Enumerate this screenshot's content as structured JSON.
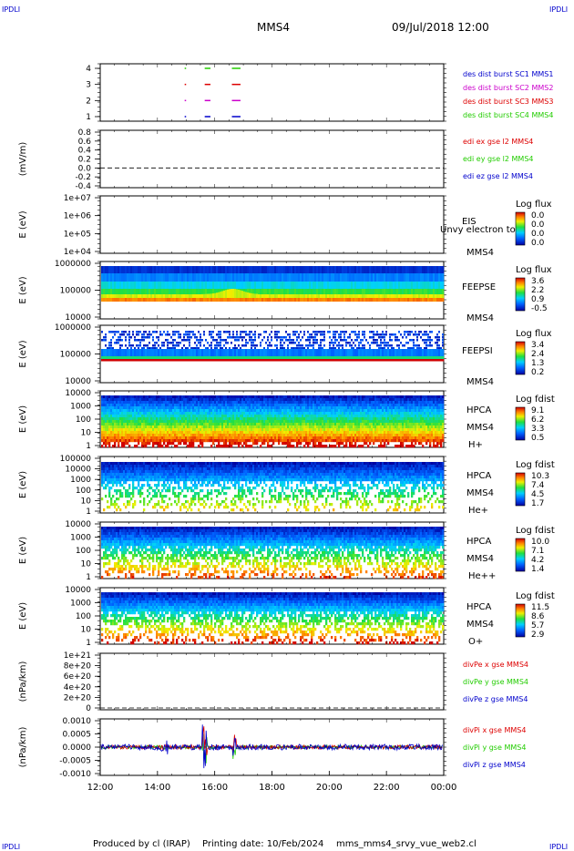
{
  "header": {
    "corner_label": "IPDLI",
    "spacecraft": "MMS4",
    "datetime": "09/Jul/2018 12:00"
  },
  "footer": {
    "produced_by": "Produced by cl (IRAP)",
    "printing_date": "Printing date: 10/Feb/2024",
    "file": "mms_mms4_srvy_vue_web2.cl"
  },
  "colors": {
    "red": "#dd0000",
    "green": "#22cc00",
    "blue": "#0000cc",
    "magenta": "#cc00cc",
    "orange": "#ff8c00"
  },
  "chart_data": {
    "type": "heatmap",
    "x_tick_labels": [
      "12:00",
      "14:00",
      "16:00",
      "18:00",
      "20:00",
      "22:00",
      "00:00"
    ],
    "panels": [
      {
        "kind": "burst",
        "y_ticks": [
          "4",
          "3",
          "2",
          "1"
        ],
        "legend": [
          {
            "text": "des dist burst SC1 MMS1",
            "color": "#0000cc"
          },
          {
            "text": "des dist burst SC2 MMS2",
            "color": "#cc00cc"
          },
          {
            "text": "des dist burst SC3 MMS3",
            "color": "#dd0000"
          },
          {
            "text": "des dist burst SC4 MMS4",
            "color": "#22cc00"
          }
        ],
        "intervals": [
          {
            "sc": 4,
            "start": 14.95,
            "end": 15.0
          },
          {
            "sc": 4,
            "start": 15.65,
            "end": 15.85
          },
          {
            "sc": 4,
            "start": 16.6,
            "end": 16.9
          },
          {
            "sc": 3,
            "start": 14.95,
            "end": 15.0
          },
          {
            "sc": 3,
            "start": 15.65,
            "end": 15.85
          },
          {
            "sc": 3,
            "start": 16.6,
            "end": 16.9
          },
          {
            "sc": 2,
            "start": 14.95,
            "end": 15.0
          },
          {
            "sc": 2,
            "start": 15.65,
            "end": 15.85
          },
          {
            "sc": 2,
            "start": 16.6,
            "end": 16.9
          },
          {
            "sc": 1,
            "start": 14.95,
            "end": 15.0
          },
          {
            "sc": 1,
            "start": 15.65,
            "end": 15.85
          },
          {
            "sc": 1,
            "start": 16.6,
            "end": 16.9
          }
        ]
      },
      {
        "kind": "line",
        "ylabel": "(mV/m)",
        "y_ticks": [
          "0.8",
          "0.6",
          "0.4",
          "0.2",
          "0.0",
          "-0.2",
          "-0.4"
        ],
        "legend": [
          {
            "text": "edi ex gse l2 MMS4",
            "color": "#dd0000"
          },
          {
            "text": "edi ey gse l2 MMS4",
            "color": "#22cc00"
          },
          {
            "text": "edi ez gse l2 MMS4",
            "color": "#0000cc"
          }
        ]
      },
      {
        "kind": "spectro",
        "ylabel": "E (eV)",
        "y_ticks": [
          "1e+07",
          "1e+06",
          "1e+05",
          "1e+04"
        ],
        "instrument": [
          "EIS",
          "MMS4"
        ],
        "overlap_label": "Unvy electron to",
        "cb_title": "Log flux",
        "cb_labels": [
          "0.0",
          "0.0",
          "0.0",
          "0.0"
        ],
        "fill": "none"
      },
      {
        "kind": "spectro",
        "ylabel": "E (eV)",
        "y_ticks": [
          "1000000",
          "100000",
          "10000"
        ],
        "instrument": [
          "FEEPSE",
          "MMS4"
        ],
        "cb_title": "Log flux",
        "cb_labels": [
          "3.6",
          "2.2",
          "0.9",
          "-0.5"
        ],
        "fill": "feepse"
      },
      {
        "kind": "spectro",
        "ylabel": "E (eV)",
        "y_ticks": [
          "1000000",
          "100000",
          "10000"
        ],
        "instrument": [
          "FEEPSI",
          "MMS4"
        ],
        "cb_title": "Log flux",
        "cb_labels": [
          "3.4",
          "2.4",
          "1.3",
          "0.2"
        ],
        "fill": "feepsi"
      },
      {
        "kind": "spectro",
        "ylabel": "E (eV)",
        "y_ticks": [
          "10000",
          "1000",
          "100",
          "10",
          "1"
        ],
        "instrument": [
          "HPCA",
          "MMS4",
          "H+"
        ],
        "cb_title": "Log fdist",
        "cb_labels": [
          "9.1",
          "6.2",
          "3.3",
          "0.5"
        ],
        "fill": "hplus"
      },
      {
        "kind": "spectro",
        "ylabel": "E (eV)",
        "y_ticks": [
          "100000",
          "10000",
          "1000",
          "100",
          "10",
          "1"
        ],
        "instrument": [
          "HPCA",
          "MMS4",
          "He+"
        ],
        "cb_title": "Log fdist",
        "cb_labels": [
          "10.3",
          "7.4",
          "4.5",
          "1.7"
        ],
        "fill": "heplus"
      },
      {
        "kind": "spectro",
        "ylabel": "E (eV)",
        "y_ticks": [
          "10000",
          "1000",
          "100",
          "10",
          "1"
        ],
        "instrument": [
          "HPCA",
          "MMS4",
          "He++"
        ],
        "cb_title": "Log fdist",
        "cb_labels": [
          "10.0",
          "7.1",
          "4.2",
          "1.4"
        ],
        "fill": "heplusplus"
      },
      {
        "kind": "spectro",
        "ylabel": "E (eV)",
        "y_ticks": [
          "10000",
          "1000",
          "100",
          "10",
          "1"
        ],
        "instrument": [
          "HPCA",
          "MMS4",
          "O+"
        ],
        "cb_title": "Log fdist",
        "cb_labels": [
          "11.5",
          "8.6",
          "5.7",
          "2.9"
        ],
        "fill": "oplus"
      },
      {
        "kind": "line",
        "ylabel": "(nPa/km)",
        "y_ticks": [
          "1e+21",
          "8e+20",
          "6e+20",
          "4e+20",
          "2e+20",
          "0"
        ],
        "legend": [
          {
            "text": "divPe x gse MMS4",
            "color": "#dd0000"
          },
          {
            "text": "divPe y gse MMS4",
            "color": "#22cc00"
          },
          {
            "text": "divPe z gse MMS4",
            "color": "#0000cc"
          }
        ]
      },
      {
        "kind": "divpi",
        "ylabel": "(nPa/km)",
        "y_ticks": [
          "0.0010",
          "0.0005",
          "0.0000",
          "-0.0005",
          "-0.0010"
        ],
        "legend": [
          {
            "text": "divPi x gse MMS4",
            "color": "#dd0000"
          },
          {
            "text": "divPi y gse MMS4",
            "color": "#22cc00"
          },
          {
            "text": "divPi z gse MMS4",
            "color": "#0000cc"
          }
        ]
      }
    ]
  }
}
